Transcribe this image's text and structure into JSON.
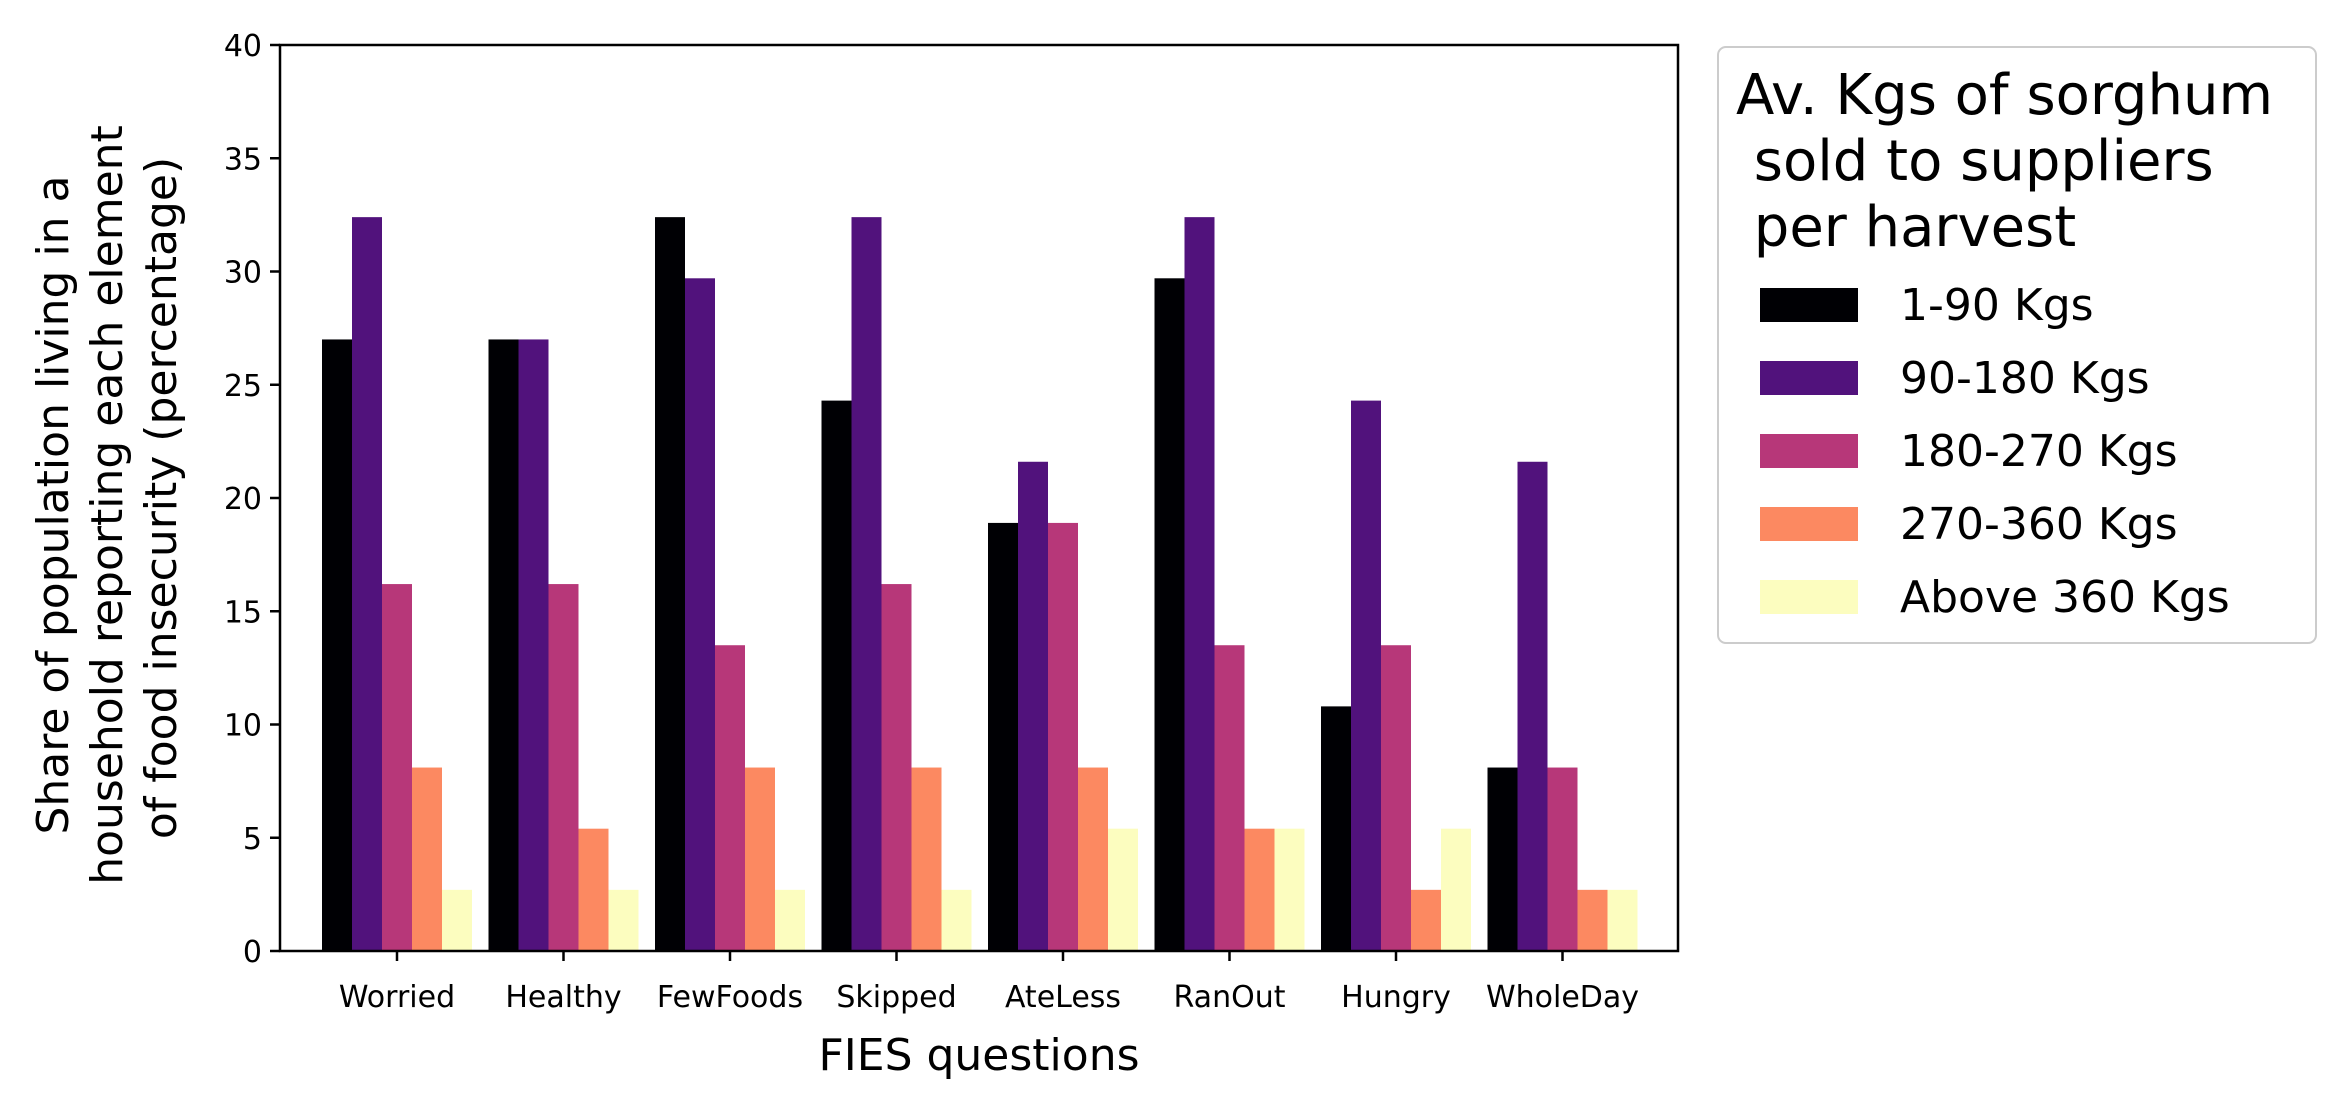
{
  "chart_data": {
    "type": "bar",
    "title": "",
    "xlabel": "FIES questions",
    "ylabel_lines": [
      "Share of population living in a",
      "household reporting each element",
      "of food insecurity (percentage)"
    ],
    "ylim": [
      0,
      40
    ],
    "yticks": [
      0,
      5,
      10,
      15,
      20,
      25,
      30,
      35,
      40
    ],
    "grid": false,
    "categories": [
      "Worried",
      "Healthy",
      "FewFoods",
      "Skipped",
      "AteLess",
      "RanOut",
      "Hungry",
      "WholeDay"
    ],
    "legend": {
      "placement": "outside-right",
      "title_lines": [
        "Av. Kgs of sorghum",
        " sold to suppliers",
        " per harvest"
      ]
    },
    "series": [
      {
        "name": "1-90 Kgs",
        "color": "#000004",
        "values": [
          27.0,
          27.0,
          32.4,
          24.3,
          18.9,
          29.7,
          10.8,
          8.1
        ]
      },
      {
        "name": "90-180 Kgs",
        "color": "#51127c",
        "values": [
          32.4,
          27.0,
          29.7,
          32.4,
          21.6,
          32.4,
          24.3,
          21.6
        ]
      },
      {
        "name": "180-270 Kgs",
        "color": "#b73779",
        "values": [
          16.2,
          16.2,
          13.5,
          16.2,
          18.9,
          13.5,
          13.5,
          8.1
        ]
      },
      {
        "name": "270-360 Kgs",
        "color": "#fc8961",
        "values": [
          8.1,
          5.4,
          8.1,
          8.1,
          8.1,
          5.4,
          2.7,
          2.7
        ]
      },
      {
        "name": "Above 360 Kgs",
        "color": "#fcfdbf",
        "values": [
          2.7,
          2.7,
          2.7,
          2.7,
          5.4,
          5.4,
          5.4,
          2.7
        ]
      }
    ]
  }
}
